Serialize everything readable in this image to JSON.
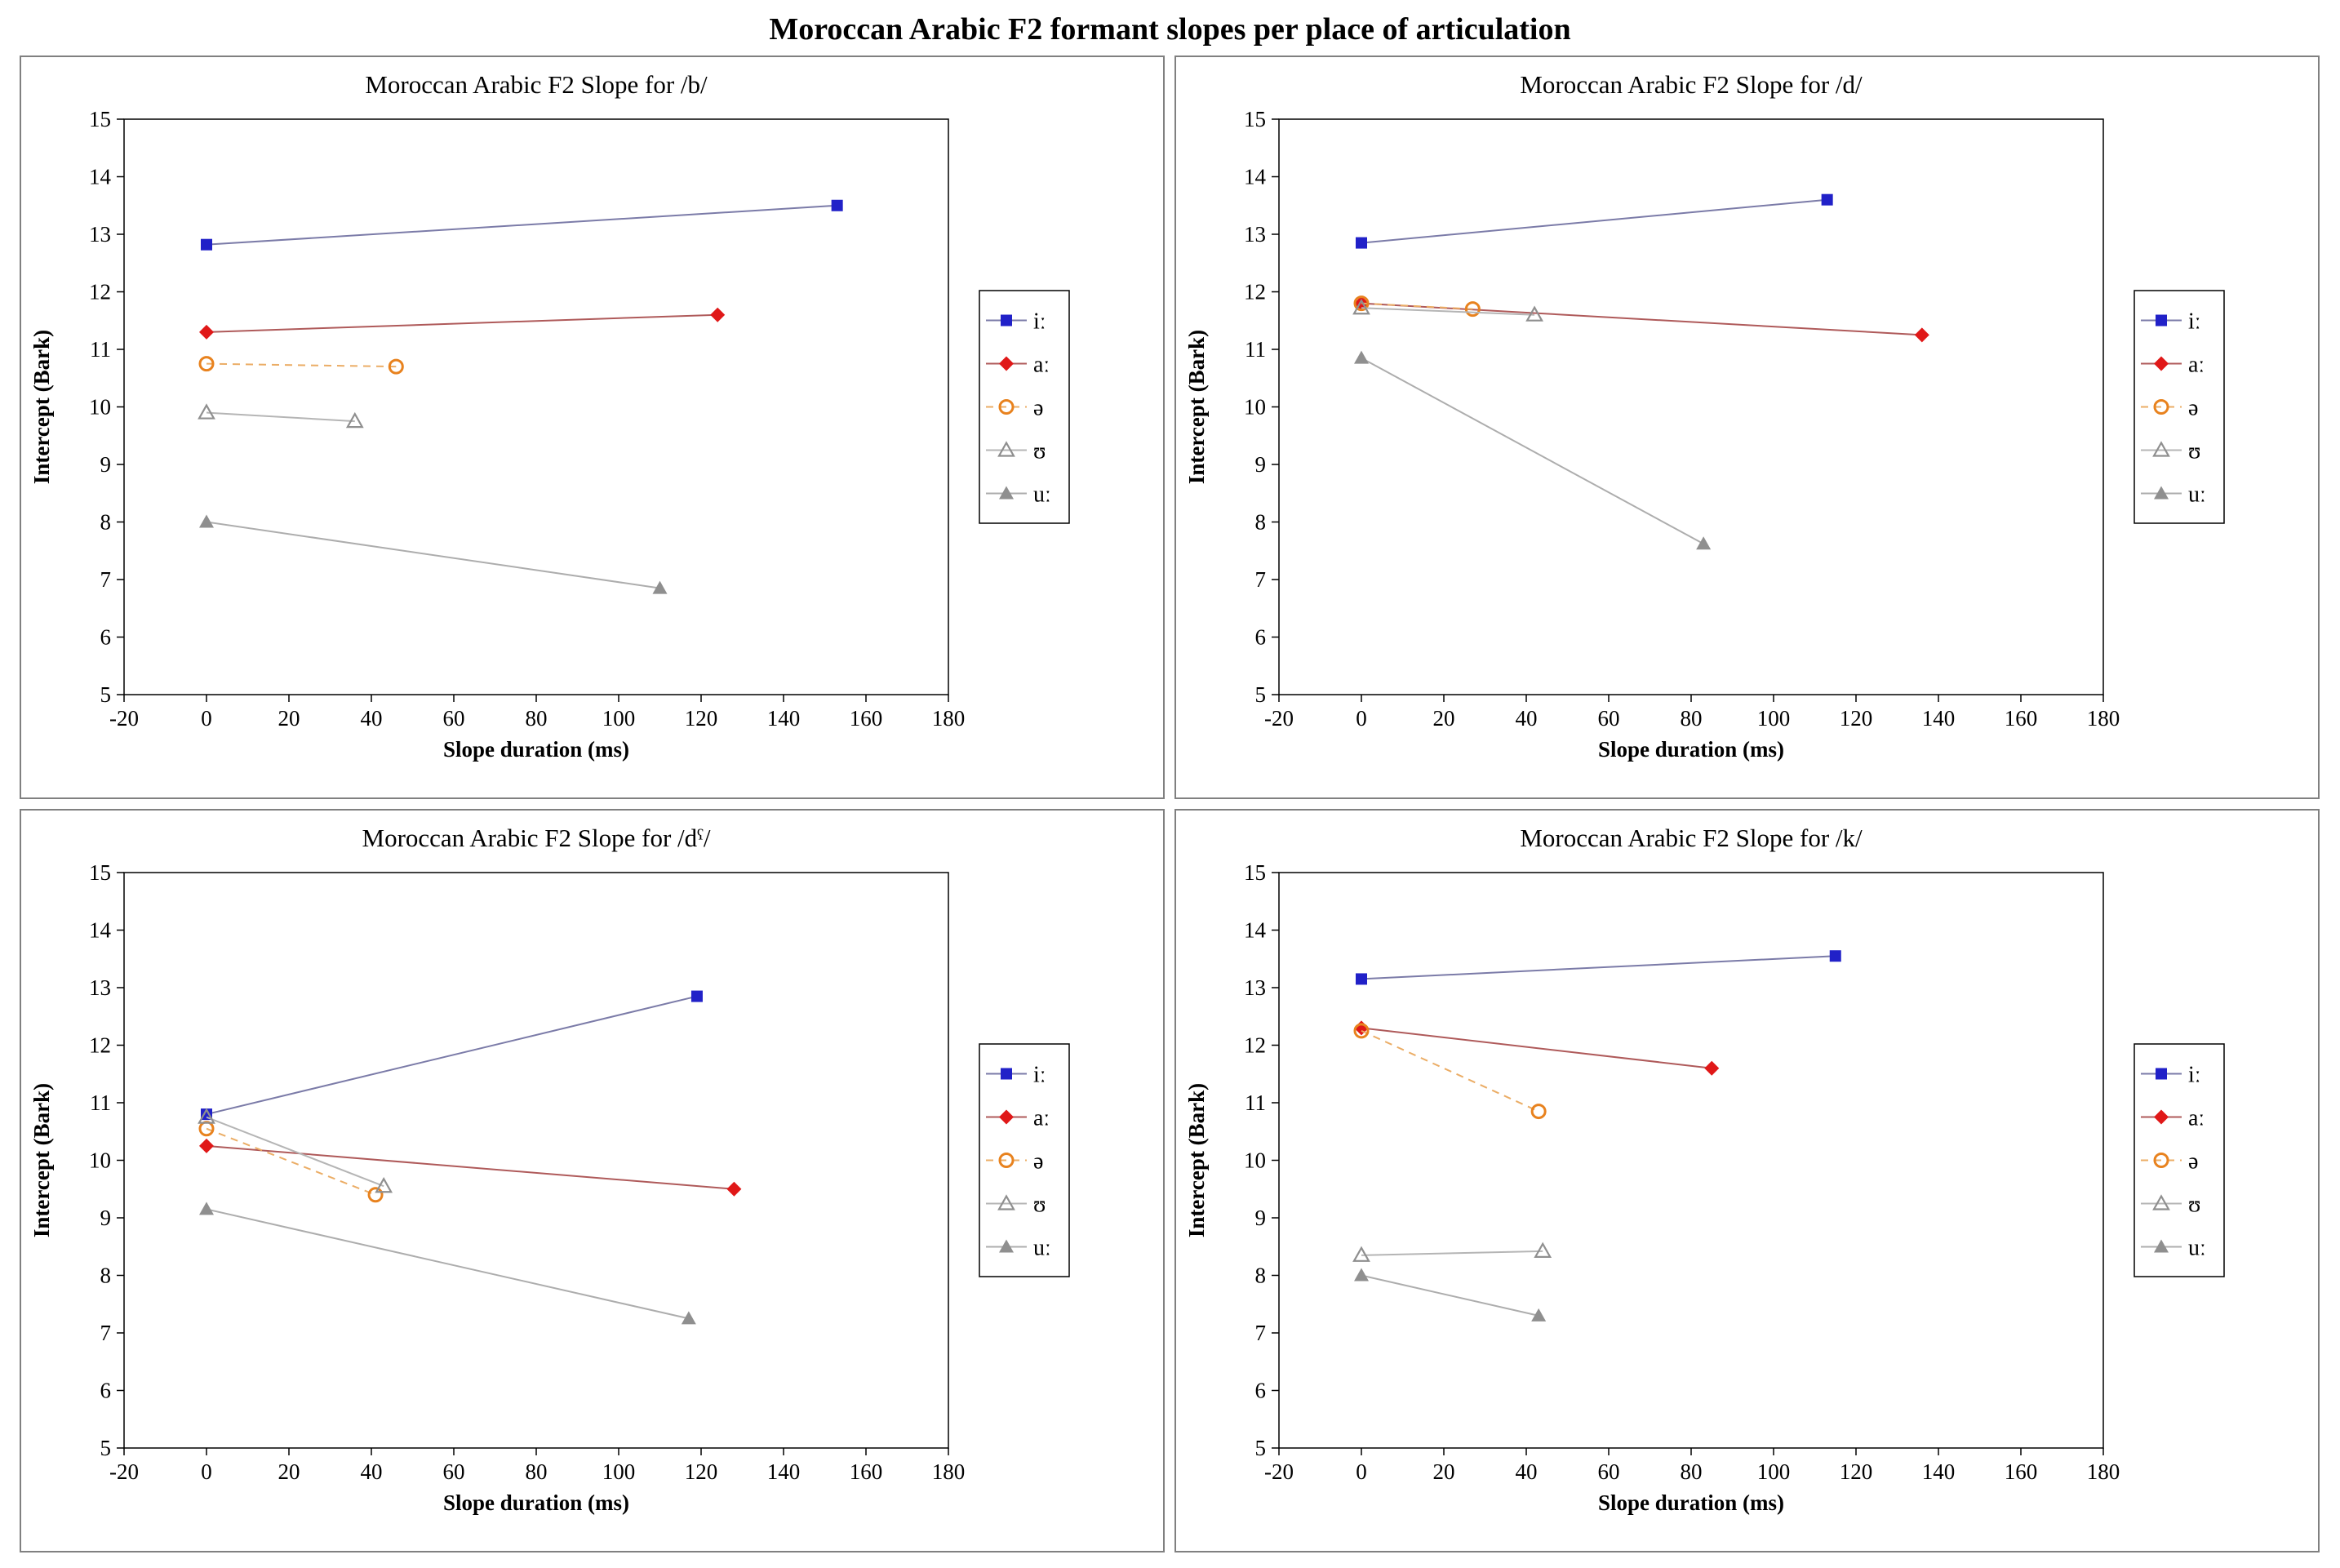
{
  "page_title": "Moroccan Arabic F2 formant slopes per place of articulation",
  "colors": {
    "panel_border": "#808080",
    "axis": "#000000",
    "plot_background": "#ffffff"
  },
  "axes": {
    "xticks": [
      -20,
      0,
      20,
      40,
      60,
      80,
      100,
      120,
      140,
      160,
      180
    ],
    "yticks": [
      5,
      6,
      7,
      8,
      9,
      10,
      11,
      12,
      13,
      14,
      15
    ]
  },
  "series_styles": [
    {
      "key": "i-long",
      "label": "iː",
      "marker": "square",
      "fill": "filled",
      "color": "#2121C8",
      "line_color": "#7B7BA8",
      "dash": "solid"
    },
    {
      "key": "a-long",
      "label": "aː",
      "marker": "diamond",
      "fill": "filled",
      "color": "#E01818",
      "line_color": "#AF5A5A",
      "dash": "solid"
    },
    {
      "key": "schwa",
      "label": "ə",
      "marker": "circle",
      "fill": "open",
      "color": "#E8821E",
      "line_color": "#EBAD66",
      "dash": "dashed"
    },
    {
      "key": "upsilon",
      "label": "ʊ",
      "marker": "triangle",
      "fill": "open",
      "color": "#8F8F8F",
      "line_color": "#B5B5B5",
      "dash": "solid"
    },
    {
      "key": "u-long",
      "label": "uː",
      "marker": "triangle",
      "fill": "filled",
      "color": "#8F8F8F",
      "line_color": "#ADADAD",
      "dash": "solid"
    }
  ],
  "chart_data": [
    {
      "type": "line",
      "key": "b",
      "title": "Moroccan Arabic F2 Slope for /b/",
      "xlabel": "Slope duration (ms)",
      "ylabel": "Intercept (Bark)",
      "xlim": [
        -20,
        180
      ],
      "ylim": [
        5,
        15
      ],
      "series": [
        {
          "name": "iː",
          "points": [
            [
              0,
              12.82
            ],
            [
              153,
              13.5
            ]
          ]
        },
        {
          "name": "aː",
          "points": [
            [
              0,
              11.3
            ],
            [
              124,
              11.6
            ]
          ]
        },
        {
          "name": "ə",
          "points": [
            [
              0,
              10.75
            ],
            [
              46,
              10.7
            ]
          ]
        },
        {
          "name": "ʊ",
          "points": [
            [
              0,
              9.9
            ],
            [
              36,
              9.75
            ]
          ]
        },
        {
          "name": "uː",
          "points": [
            [
              0,
              8.0
            ],
            [
              110,
              6.85
            ]
          ]
        }
      ]
    },
    {
      "type": "line",
      "key": "d",
      "title": "Moroccan Arabic F2 Slope for /d/",
      "xlabel": "Slope duration (ms)",
      "ylabel": "Intercept (Bark)",
      "xlim": [
        -20,
        180
      ],
      "ylim": [
        5,
        15
      ],
      "series": [
        {
          "name": "iː",
          "points": [
            [
              0,
              12.85
            ],
            [
              113,
              13.6
            ]
          ]
        },
        {
          "name": "aː",
          "points": [
            [
              0,
              11.8
            ],
            [
              136,
              11.25
            ]
          ]
        },
        {
          "name": "ə",
          "points": [
            [
              0,
              11.8
            ],
            [
              27,
              11.7
            ]
          ]
        },
        {
          "name": "ʊ",
          "points": [
            [
              0,
              11.72
            ],
            [
              42,
              11.6
            ]
          ]
        },
        {
          "name": "uː",
          "points": [
            [
              0,
              10.85
            ],
            [
              83,
              7.62
            ]
          ]
        }
      ]
    },
    {
      "type": "line",
      "key": "d-pharyngealized",
      "title": "Moroccan Arabic F2 Slope for /dˤ/",
      "xlabel": "Slope duration (ms)",
      "ylabel": "Intercept (Bark)",
      "xlim": [
        -20,
        180
      ],
      "ylim": [
        5,
        15
      ],
      "series": [
        {
          "name": "iː",
          "points": [
            [
              0,
              10.8
            ],
            [
              119,
              12.85
            ]
          ]
        },
        {
          "name": "aː",
          "points": [
            [
              0,
              10.25
            ],
            [
              128,
              9.5
            ]
          ]
        },
        {
          "name": "ə",
          "points": [
            [
              0,
              10.55
            ],
            [
              41,
              9.4
            ]
          ]
        },
        {
          "name": "ʊ",
          "points": [
            [
              0,
              10.75
            ],
            [
              43,
              9.55
            ]
          ]
        },
        {
          "name": "uː",
          "points": [
            [
              0,
              9.15
            ],
            [
              117,
              7.25
            ]
          ]
        }
      ]
    },
    {
      "type": "line",
      "key": "k",
      "title": "Moroccan Arabic F2 Slope for /k/",
      "xlabel": "Slope duration (ms)",
      "ylabel": "Intercept (Bark)",
      "xlim": [
        -20,
        180
      ],
      "ylim": [
        5,
        15
      ],
      "series": [
        {
          "name": "iː",
          "points": [
            [
              0,
              13.15
            ],
            [
              115,
              13.55
            ]
          ]
        },
        {
          "name": "aː",
          "points": [
            [
              0,
              12.3
            ],
            [
              85,
              11.6
            ]
          ]
        },
        {
          "name": "ə",
          "points": [
            [
              0,
              12.25
            ],
            [
              43,
              10.85
            ]
          ]
        },
        {
          "name": "ʊ",
          "points": [
            [
              0,
              8.35
            ],
            [
              44,
              8.42
            ]
          ]
        },
        {
          "name": "uː",
          "points": [
            [
              0,
              8.0
            ],
            [
              43,
              7.3
            ]
          ]
        }
      ]
    }
  ]
}
